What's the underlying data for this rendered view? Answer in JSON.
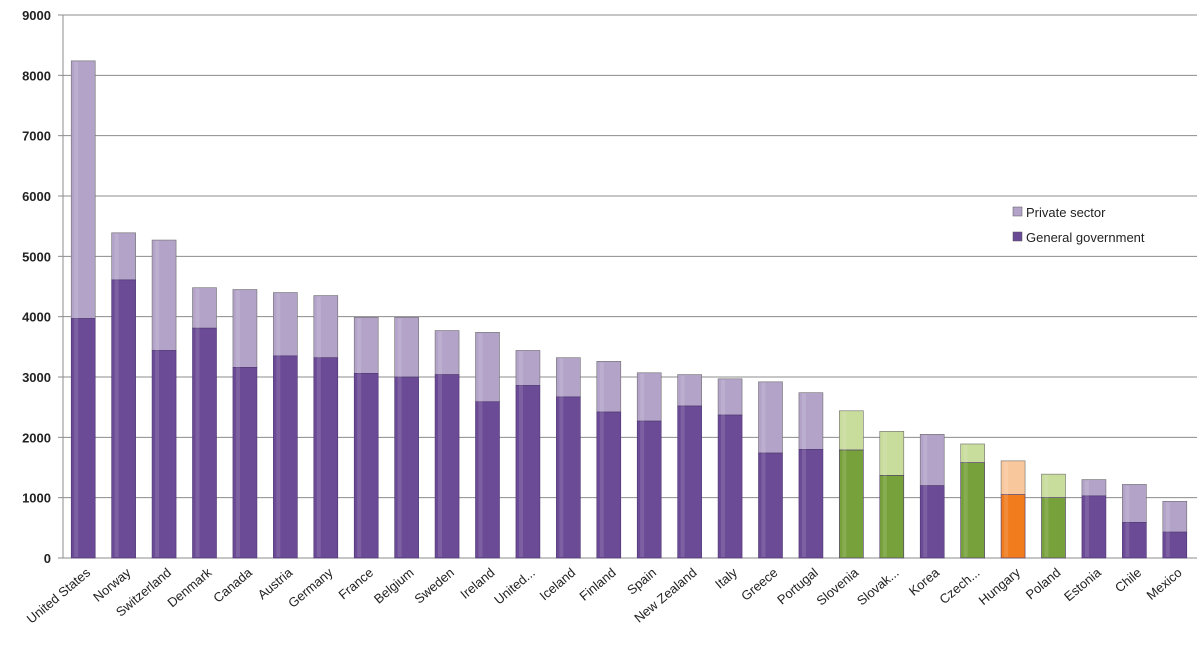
{
  "chart_data": {
    "type": "bar",
    "stacked": true,
    "ylim": [
      0,
      9000
    ],
    "yticks": [
      0,
      1000,
      2000,
      3000,
      4000,
      5000,
      6000,
      7000,
      8000,
      9000
    ],
    "grid": true,
    "legend_position": "right",
    "categories": [
      "United States",
      "Norway",
      "Switzerland",
      "Denmark",
      "Canada",
      "Austria",
      "Germany",
      "France",
      "Belgium",
      "Sweden",
      "Ireland",
      "United...",
      "Iceland",
      "Finland",
      "Spain",
      "New Zealand",
      "Italy",
      "Greece",
      "Portugal",
      "Slovenia",
      "Slovak...",
      "Korea",
      "Czech...",
      "Hungary",
      "Poland",
      "Estonia",
      "Chile",
      "Mexico"
    ],
    "series": [
      {
        "name": "General government",
        "values": [
          3970,
          4610,
          3440,
          3810,
          3160,
          3350,
          3320,
          3060,
          3000,
          3040,
          2590,
          2860,
          2670,
          2420,
          2270,
          2520,
          2370,
          1740,
          1800,
          1790,
          1370,
          1200,
          1580,
          1050,
          1000,
          1030,
          590,
          430
        ]
      },
      {
        "name": "Private sector",
        "values": [
          4270,
          780,
          1830,
          670,
          1290,
          1050,
          1030,
          930,
          990,
          730,
          1150,
          580,
          650,
          840,
          800,
          520,
          600,
          1180,
          940,
          650,
          730,
          850,
          310,
          560,
          390,
          270,
          630,
          510
        ]
      }
    ],
    "bar_colors": {
      "default": {
        "government": "#6b4a96",
        "private": "#b3a3c9"
      },
      "highlight_green": {
        "government": "#77a13a",
        "private": "#c8dc9c"
      },
      "highlight_orange": {
        "government": "#f07c1e",
        "private": "#f9c79c"
      }
    },
    "highlighted": {
      "Slovenia": "highlight_green",
      "Slovak...": "highlight_green",
      "Czech...": "highlight_green",
      "Poland": "highlight_green",
      "Hungary": "highlight_orange"
    }
  }
}
